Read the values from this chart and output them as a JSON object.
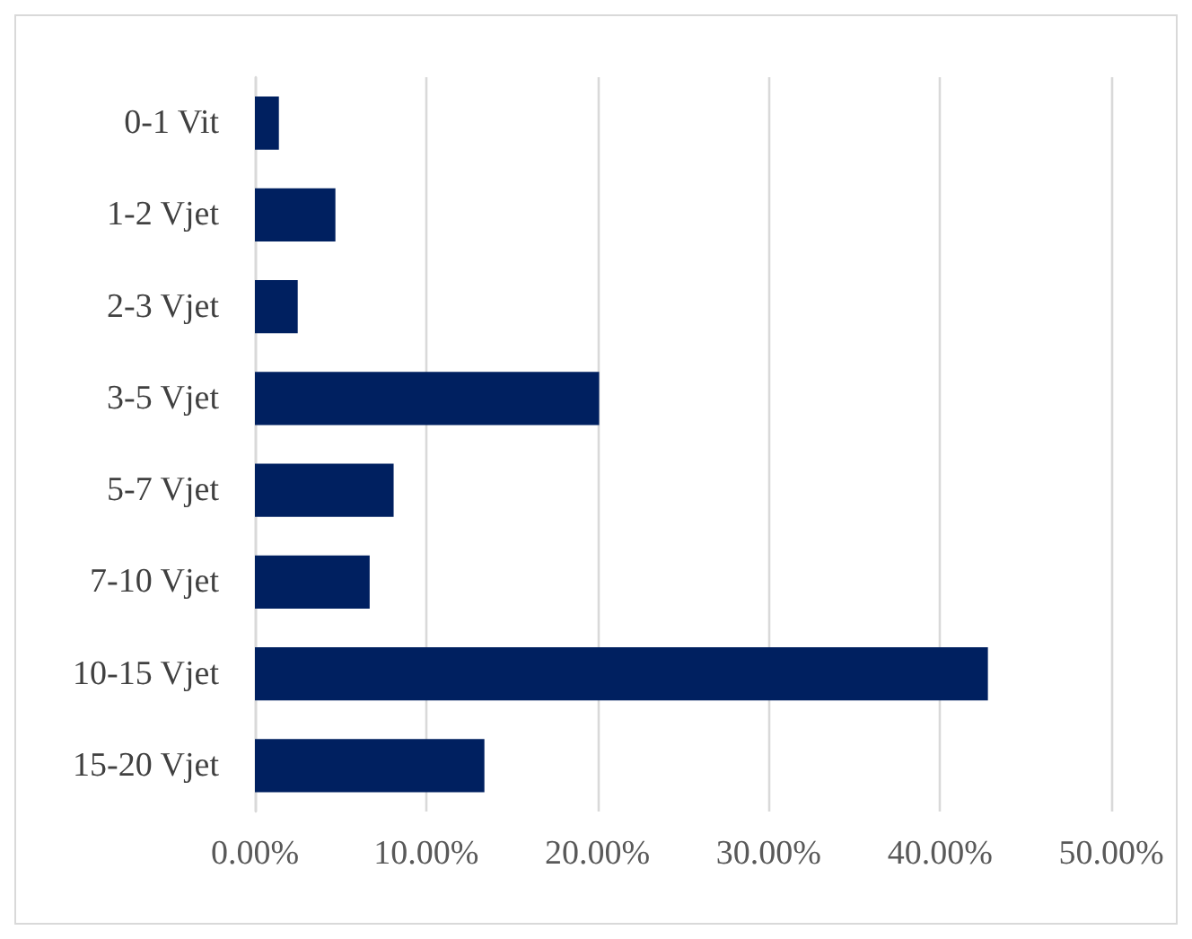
{
  "chart_data": {
    "type": "bar",
    "orientation": "horizontal",
    "categories": [
      "0-1 Vit",
      "1-2 Vjet",
      "2-3 Vjet",
      "3-5 Vjet",
      "5-7 Vjet",
      "7-10 Vjet",
      "10-15 Vjet",
      "15-20 Vjet"
    ],
    "values": [
      1.4,
      4.7,
      2.5,
      20.1,
      8.1,
      6.7,
      42.8,
      13.4
    ],
    "color": "#002060",
    "xlim": [
      0,
      50
    ],
    "xticks": [
      {
        "value": 0,
        "label": "0.00%"
      },
      {
        "value": 10,
        "label": "10.00%"
      },
      {
        "value": 20,
        "label": "20.00%"
      },
      {
        "value": 30,
        "label": "30.00%"
      },
      {
        "value": 40,
        "label": "40.00%"
      },
      {
        "value": 50,
        "label": "50.00%"
      }
    ],
    "grid": "x"
  }
}
